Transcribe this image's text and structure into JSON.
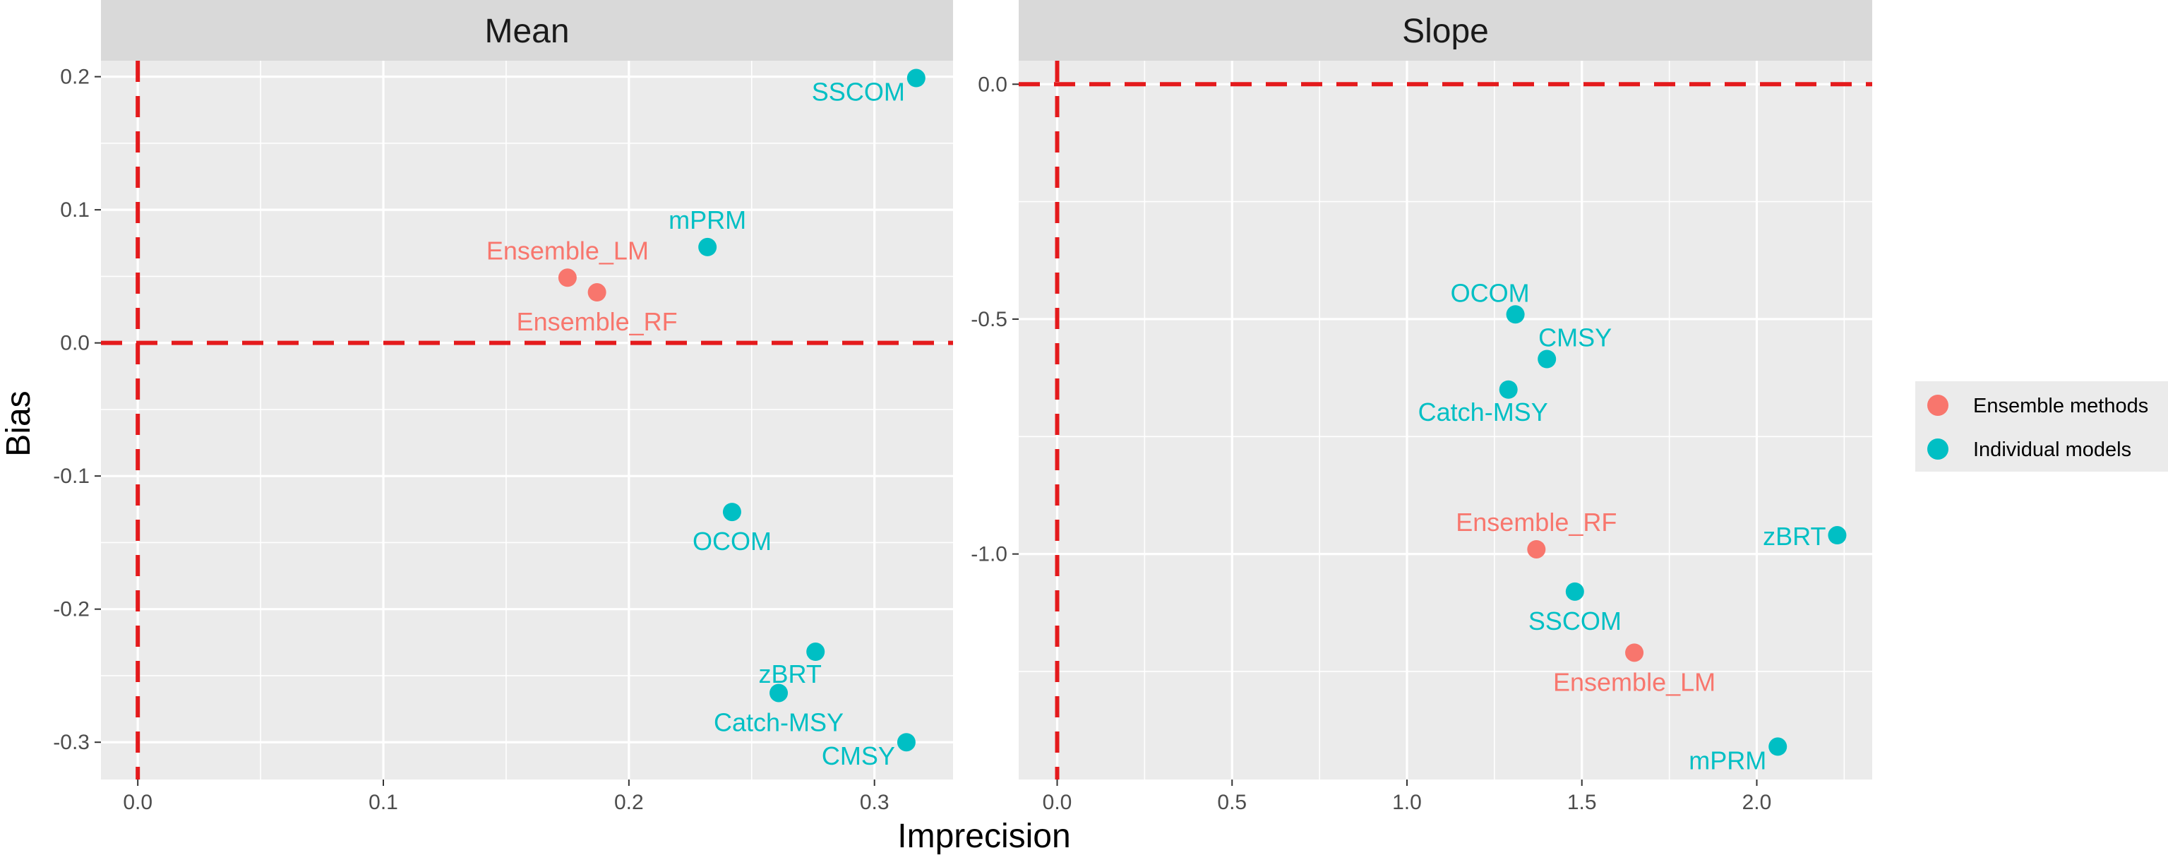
{
  "colors": {
    "ensemble": "#F8766D",
    "individual": "#00BFC4",
    "reference": "#E41A1C"
  },
  "axes": {
    "xlabel": "Imprecision",
    "ylabel": "Bias"
  },
  "legend": {
    "items": [
      {
        "label": "Ensemble methods",
        "group": "ensemble"
      },
      {
        "label": "Individual models",
        "group": "individual"
      }
    ]
  },
  "chart_data": [
    {
      "type": "scatter",
      "title": "Mean",
      "xlim": [
        -0.015,
        0.332
      ],
      "ylim": [
        -0.328,
        0.212
      ],
      "xticks": [
        0.0,
        0.1,
        0.2,
        0.3
      ],
      "xtick_labels": [
        "0.0",
        "0.1",
        "0.2",
        "0.3"
      ],
      "xminor": [
        0.05,
        0.15,
        0.25
      ],
      "yticks": [
        -0.3,
        -0.2,
        -0.1,
        0.0,
        0.1,
        0.2
      ],
      "ytick_labels": [
        "-0.3",
        "-0.2",
        "-0.1",
        "0.0",
        "0.1",
        "0.2"
      ],
      "yminor": [
        -0.25,
        -0.15,
        -0.05,
        0.05,
        0.15
      ],
      "reference": {
        "x": 0,
        "y": 0
      },
      "points": [
        {
          "name": "SSCOM",
          "x": 0.317,
          "y": 0.199,
          "group": "individual",
          "label_pos": "left-below"
        },
        {
          "name": "mPRM",
          "x": 0.232,
          "y": 0.072,
          "group": "individual",
          "label_pos": "above"
        },
        {
          "name": "Ensemble_LM",
          "x": 0.175,
          "y": 0.049,
          "group": "ensemble",
          "label_pos": "above"
        },
        {
          "name": "Ensemble_RF",
          "x": 0.187,
          "y": 0.038,
          "group": "ensemble",
          "label_pos": "below"
        },
        {
          "name": "OCOM",
          "x": 0.242,
          "y": -0.127,
          "group": "individual",
          "label_pos": "below"
        },
        {
          "name": "zBRT",
          "x": 0.276,
          "y": -0.232,
          "group": "individual",
          "label_pos": "below-left"
        },
        {
          "name": "Catch-MSY",
          "x": 0.261,
          "y": -0.263,
          "group": "individual",
          "label_pos": "below"
        },
        {
          "name": "CMSY",
          "x": 0.313,
          "y": -0.3,
          "group": "individual",
          "label_pos": "left-below"
        }
      ]
    },
    {
      "type": "scatter",
      "title": "Slope",
      "xlim": [
        -0.11,
        2.33
      ],
      "ylim": [
        -1.48,
        0.05
      ],
      "xticks": [
        0.0,
        0.5,
        1.0,
        1.5,
        2.0
      ],
      "xtick_labels": [
        "0.0",
        "0.5",
        "1.0",
        "1.5",
        "2.0"
      ],
      "xminor": [
        0.25,
        0.75,
        1.25,
        1.75,
        2.25
      ],
      "yticks": [
        -1.0,
        -0.5,
        0.0
      ],
      "ytick_labels": [
        "-1.0",
        "-0.5",
        "0.0"
      ],
      "yminor": [
        -1.25,
        -0.75,
        -0.25
      ],
      "reference": {
        "x": 0,
        "y": 0
      },
      "points": [
        {
          "name": "OCOM",
          "x": 1.31,
          "y": -0.49,
          "group": "individual",
          "label_pos": "above-left"
        },
        {
          "name": "CMSY",
          "x": 1.4,
          "y": -0.585,
          "group": "individual",
          "label_pos": "above-right"
        },
        {
          "name": "Catch-MSY",
          "x": 1.29,
          "y": -0.65,
          "group": "individual",
          "label_pos": "below-left"
        },
        {
          "name": "Ensemble_RF",
          "x": 1.37,
          "y": -0.99,
          "group": "ensemble",
          "label_pos": "above"
        },
        {
          "name": "zBRT",
          "x": 2.23,
          "y": -0.96,
          "group": "individual",
          "label_pos": "left"
        },
        {
          "name": "SSCOM",
          "x": 1.48,
          "y": -1.08,
          "group": "individual",
          "label_pos": "below"
        },
        {
          "name": "Ensemble_LM",
          "x": 1.65,
          "y": -1.21,
          "group": "ensemble",
          "label_pos": "below"
        },
        {
          "name": "mPRM",
          "x": 2.06,
          "y": -1.41,
          "group": "individual",
          "label_pos": "left-below"
        }
      ]
    }
  ]
}
